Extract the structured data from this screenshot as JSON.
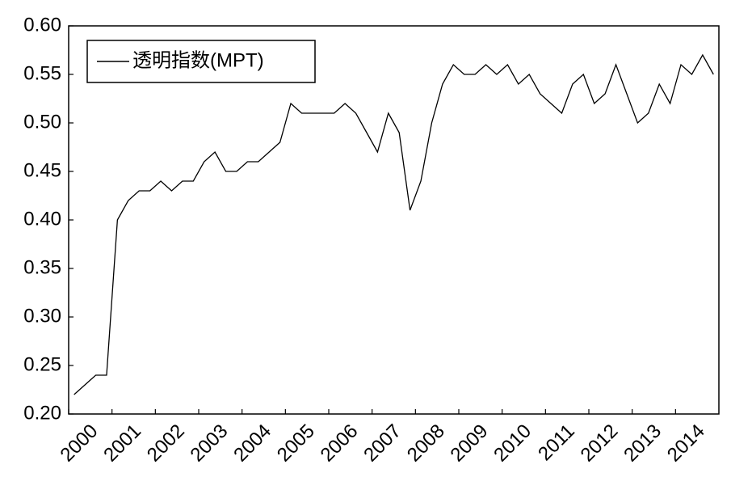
{
  "chart_data": {
    "type": "line",
    "categories": [
      "2000",
      null,
      null,
      null,
      "2001",
      null,
      null,
      null,
      "2002",
      null,
      null,
      null,
      "2003",
      null,
      null,
      null,
      "2004",
      null,
      null,
      null,
      "2005",
      null,
      null,
      null,
      "2006",
      null,
      null,
      null,
      "2007",
      null,
      null,
      null,
      "2008",
      null,
      null,
      null,
      "2009",
      null,
      null,
      null,
      "2010",
      null,
      null,
      null,
      "2011",
      null,
      null,
      null,
      "2012",
      null,
      null,
      null,
      "2013",
      null,
      null,
      null,
      "2014",
      null,
      null,
      null
    ],
    "series": [
      {
        "name": "透明指数(MPT)",
        "color": "#000000",
        "values": [
          0.22,
          0.23,
          0.24,
          0.24,
          0.4,
          0.42,
          0.43,
          0.43,
          0.44,
          0.43,
          0.44,
          0.44,
          0.46,
          0.47,
          0.45,
          0.45,
          0.46,
          0.46,
          0.47,
          0.48,
          0.52,
          0.51,
          0.51,
          0.51,
          0.51,
          0.52,
          0.51,
          0.49,
          0.47,
          0.51,
          0.49,
          0.41,
          0.44,
          0.5,
          0.54,
          0.56,
          0.55,
          0.55,
          0.56,
          0.55,
          0.56,
          0.54,
          0.55,
          0.53,
          0.52,
          0.51,
          0.54,
          0.55,
          0.52,
          0.53,
          0.56,
          0.53,
          0.5,
          0.51,
          0.54,
          0.52,
          0.56,
          0.55,
          0.57,
          0.55
        ]
      }
    ],
    "ylim": [
      0.2,
      0.6
    ],
    "yticks": [
      {
        "value": 0.2,
        "label": "0.20"
      },
      0.25,
      {
        "value": 0.3,
        "label": "0.30"
      },
      0.35,
      {
        "value": 0.4,
        "label": "0.40"
      },
      0.45,
      {
        "value": 0.5,
        "label": "0.50"
      },
      0.55,
      {
        "value": 0.6,
        "label": "0.60"
      }
    ],
    "legend": "top-left"
  }
}
